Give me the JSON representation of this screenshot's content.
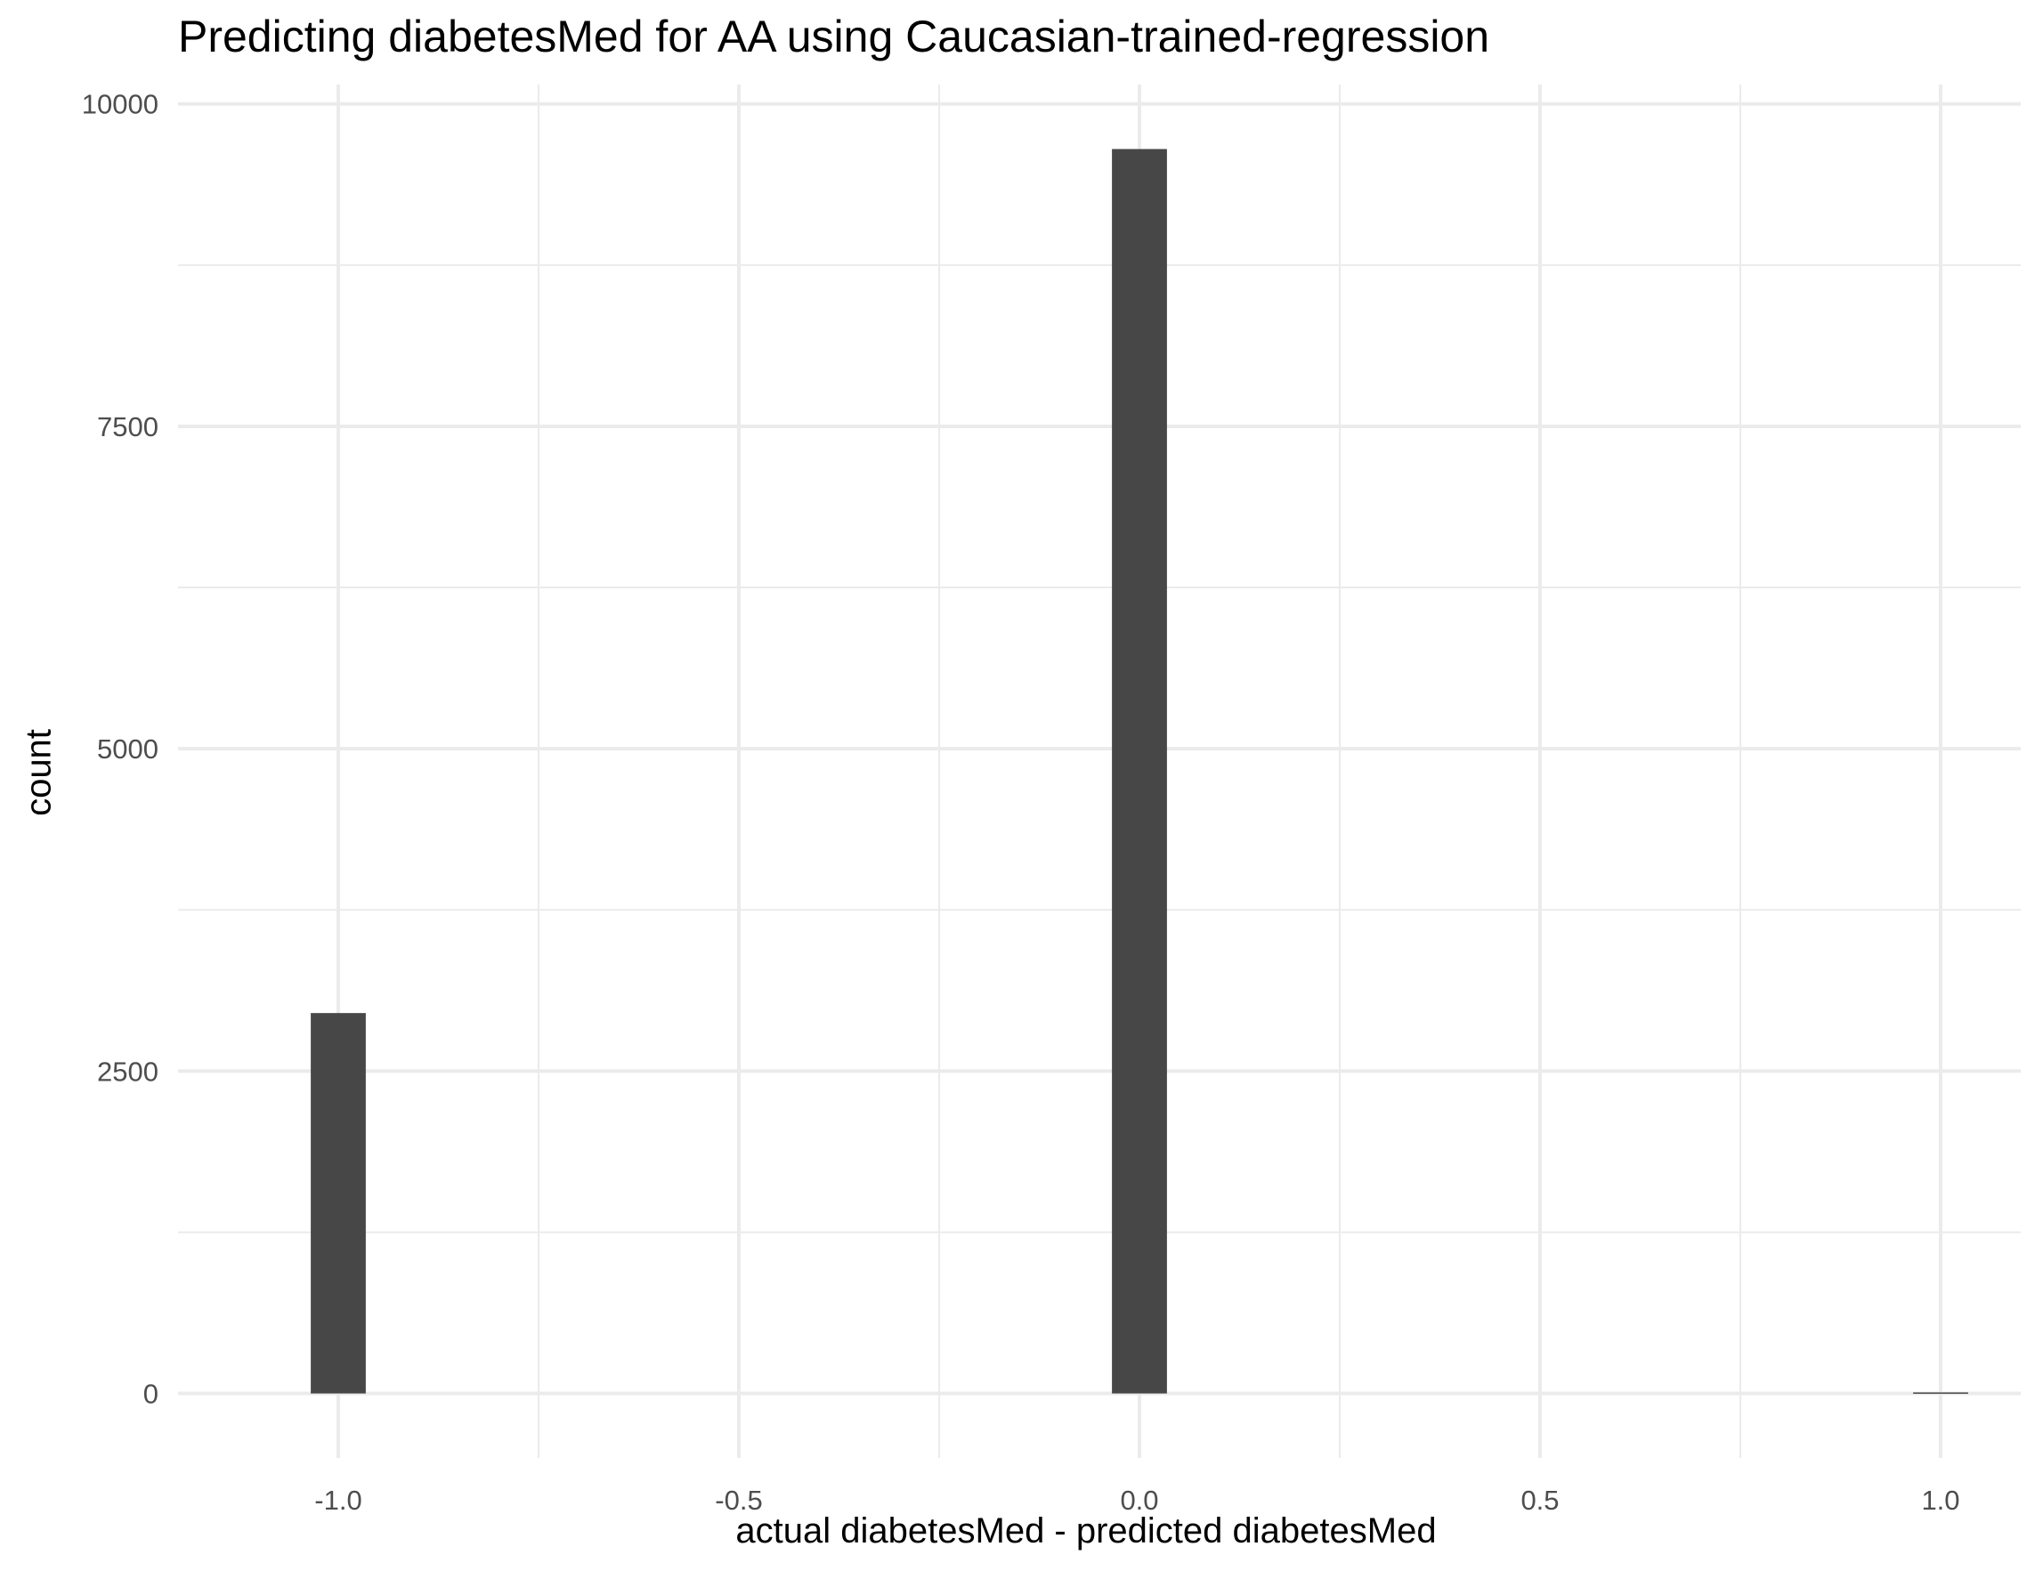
{
  "chart_data": {
    "type": "bar",
    "title": "Predicting diabetesMed for AA using Caucasian-trained-regression",
    "xlabel": "actual diabetesMed - predicted diabetesMed",
    "ylabel": "count",
    "x": [
      -1.0,
      0.0,
      1.0
    ],
    "values": [
      2950,
      9650,
      8
    ],
    "xlim": [
      -1.2,
      1.1
    ],
    "ylim": [
      -500,
      10150
    ],
    "x_ticks": [
      "-1.0",
      "-0.5",
      "0.0",
      "0.5",
      "1.0"
    ],
    "y_ticks": [
      "0",
      "2500",
      "5000",
      "7500",
      "10000"
    ],
    "grid": true,
    "bar_color": "#474747",
    "grid_color": "#ebebeb"
  }
}
